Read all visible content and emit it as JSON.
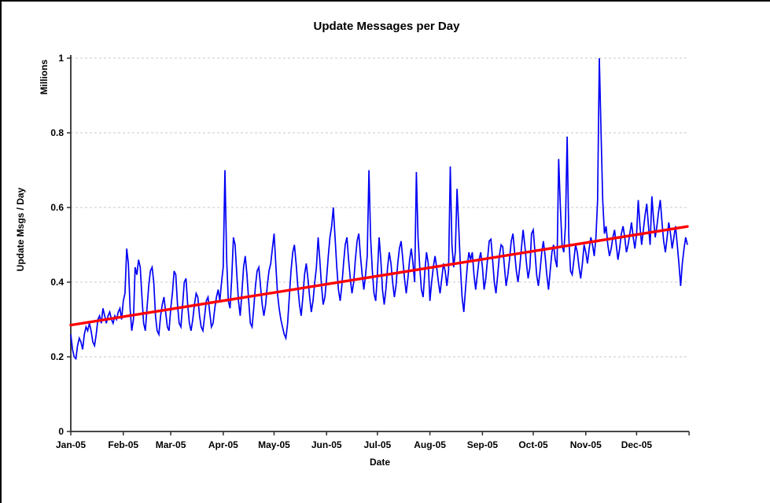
{
  "chart_data": {
    "type": "line",
    "title": "Update Messages per Day",
    "xlabel": "Date",
    "ylabel": "Update Msgs / Day",
    "ylabel_unit": "Millions",
    "ylim": [
      0,
      1
    ],
    "y_ticks": [
      0,
      0.2,
      0.4,
      0.6,
      0.8,
      1
    ],
    "y_tick_labels": [
      "0",
      "0.2",
      "0.4",
      "0.6",
      "0.8",
      "1"
    ],
    "x_tick_labels": [
      "Jan-05",
      "Feb-05",
      "Mar-05",
      "Apr-05",
      "May-05",
      "Jun-05",
      "Jul-05",
      "Aug-05",
      "Sep-05",
      "Oct-05",
      "Nov-05",
      "Dec-05"
    ],
    "month_start_days": [
      0,
      31,
      59,
      90,
      120,
      151,
      181,
      212,
      243,
      273,
      304,
      334,
      365
    ],
    "grid": "horizontal-dashed",
    "grid_color": "#c9c9c9",
    "axis_color": "#2e2e2e",
    "legend": "none",
    "series": [
      {
        "name": "Update Msgs / Day (daily)",
        "color": "#0000f5",
        "values": [
          0.26,
          0.22,
          0.2,
          0.195,
          0.23,
          0.25,
          0.24,
          0.22,
          0.26,
          0.28,
          0.27,
          0.29,
          0.27,
          0.24,
          0.23,
          0.26,
          0.3,
          0.31,
          0.29,
          0.33,
          0.31,
          0.29,
          0.31,
          0.32,
          0.3,
          0.29,
          0.31,
          0.3,
          0.32,
          0.33,
          0.3,
          0.35,
          0.37,
          0.49,
          0.45,
          0.33,
          0.27,
          0.3,
          0.44,
          0.42,
          0.46,
          0.44,
          0.36,
          0.29,
          0.27,
          0.33,
          0.39,
          0.43,
          0.44,
          0.4,
          0.31,
          0.27,
          0.26,
          0.31,
          0.34,
          0.36,
          0.32,
          0.28,
          0.27,
          0.33,
          0.37,
          0.43,
          0.42,
          0.34,
          0.29,
          0.28,
          0.34,
          0.4,
          0.41,
          0.34,
          0.29,
          0.27,
          0.3,
          0.34,
          0.37,
          0.36,
          0.31,
          0.28,
          0.27,
          0.31,
          0.35,
          0.36,
          0.32,
          0.28,
          0.29,
          0.33,
          0.36,
          0.38,
          0.35,
          0.4,
          0.44,
          0.7,
          0.46,
          0.35,
          0.33,
          0.41,
          0.52,
          0.5,
          0.42,
          0.35,
          0.31,
          0.37,
          0.44,
          0.47,
          0.42,
          0.35,
          0.29,
          0.28,
          0.33,
          0.39,
          0.43,
          0.44,
          0.39,
          0.34,
          0.31,
          0.34,
          0.39,
          0.43,
          0.45,
          0.49,
          0.53,
          0.45,
          0.37,
          0.33,
          0.3,
          0.28,
          0.26,
          0.25,
          0.29,
          0.36,
          0.43,
          0.48,
          0.5,
          0.45,
          0.39,
          0.34,
          0.31,
          0.36,
          0.42,
          0.45,
          0.41,
          0.36,
          0.32,
          0.35,
          0.4,
          0.44,
          0.52,
          0.46,
          0.39,
          0.34,
          0.36,
          0.41,
          0.47,
          0.52,
          0.55,
          0.6,
          0.52,
          0.44,
          0.38,
          0.35,
          0.39,
          0.45,
          0.5,
          0.52,
          0.46,
          0.41,
          0.37,
          0.4,
          0.46,
          0.51,
          0.53,
          0.47,
          0.42,
          0.38,
          0.42,
          0.47,
          0.7,
          0.52,
          0.43,
          0.37,
          0.35,
          0.42,
          0.52,
          0.46,
          0.38,
          0.34,
          0.38,
          0.44,
          0.48,
          0.45,
          0.4,
          0.36,
          0.39,
          0.45,
          0.49,
          0.51,
          0.46,
          0.41,
          0.37,
          0.41,
          0.46,
          0.49,
          0.45,
          0.4,
          0.695,
          0.52,
          0.44,
          0.38,
          0.36,
          0.43,
          0.48,
          0.45,
          0.35,
          0.4,
          0.44,
          0.47,
          0.44,
          0.4,
          0.37,
          0.41,
          0.45,
          0.43,
          0.39,
          0.43,
          0.71,
          0.5,
          0.44,
          0.48,
          0.65,
          0.55,
          0.44,
          0.36,
          0.32,
          0.38,
          0.44,
          0.48,
          0.46,
          0.48,
          0.42,
          0.38,
          0.42,
          0.46,
          0.48,
          0.44,
          0.38,
          0.41,
          0.46,
          0.51,
          0.515,
          0.46,
          0.4,
          0.37,
          0.42,
          0.47,
          0.5,
          0.495,
          0.44,
          0.39,
          0.42,
          0.46,
          0.51,
          0.53,
          0.48,
          0.43,
          0.4,
          0.44,
          0.49,
          0.54,
          0.5,
          0.45,
          0.41,
          0.44,
          0.53,
          0.54,
          0.48,
          0.42,
          0.39,
          0.43,
          0.48,
          0.51,
          0.47,
          0.42,
          0.38,
          0.43,
          0.48,
          0.5,
          0.46,
          0.44,
          0.73,
          0.6,
          0.5,
          0.48,
          0.55,
          0.79,
          0.52,
          0.43,
          0.42,
          0.46,
          0.5,
          0.48,
          0.44,
          0.41,
          0.45,
          0.5,
          0.48,
          0.45,
          0.49,
          0.52,
          0.5,
          0.47,
          0.52,
          0.62,
          1.0,
          0.8,
          0.62,
          0.53,
          0.55,
          0.5,
          0.47,
          0.49,
          0.52,
          0.54,
          0.5,
          0.46,
          0.49,
          0.53,
          0.55,
          0.52,
          0.48,
          0.5,
          0.53,
          0.56,
          0.52,
          0.49,
          0.53,
          0.62,
          0.55,
          0.5,
          0.54,
          0.58,
          0.61,
          0.55,
          0.5,
          0.63,
          0.57,
          0.52,
          0.55,
          0.59,
          0.62,
          0.56,
          0.51,
          0.48,
          0.52,
          0.56,
          0.53,
          0.49,
          0.52,
          0.55,
          0.5,
          0.45,
          0.39,
          0.45,
          0.49,
          0.52,
          0.5
        ]
      },
      {
        "name": "Linear trend",
        "color": "#ff0000",
        "trend": true,
        "start_value": 0.285,
        "end_value": 0.549
      }
    ]
  }
}
